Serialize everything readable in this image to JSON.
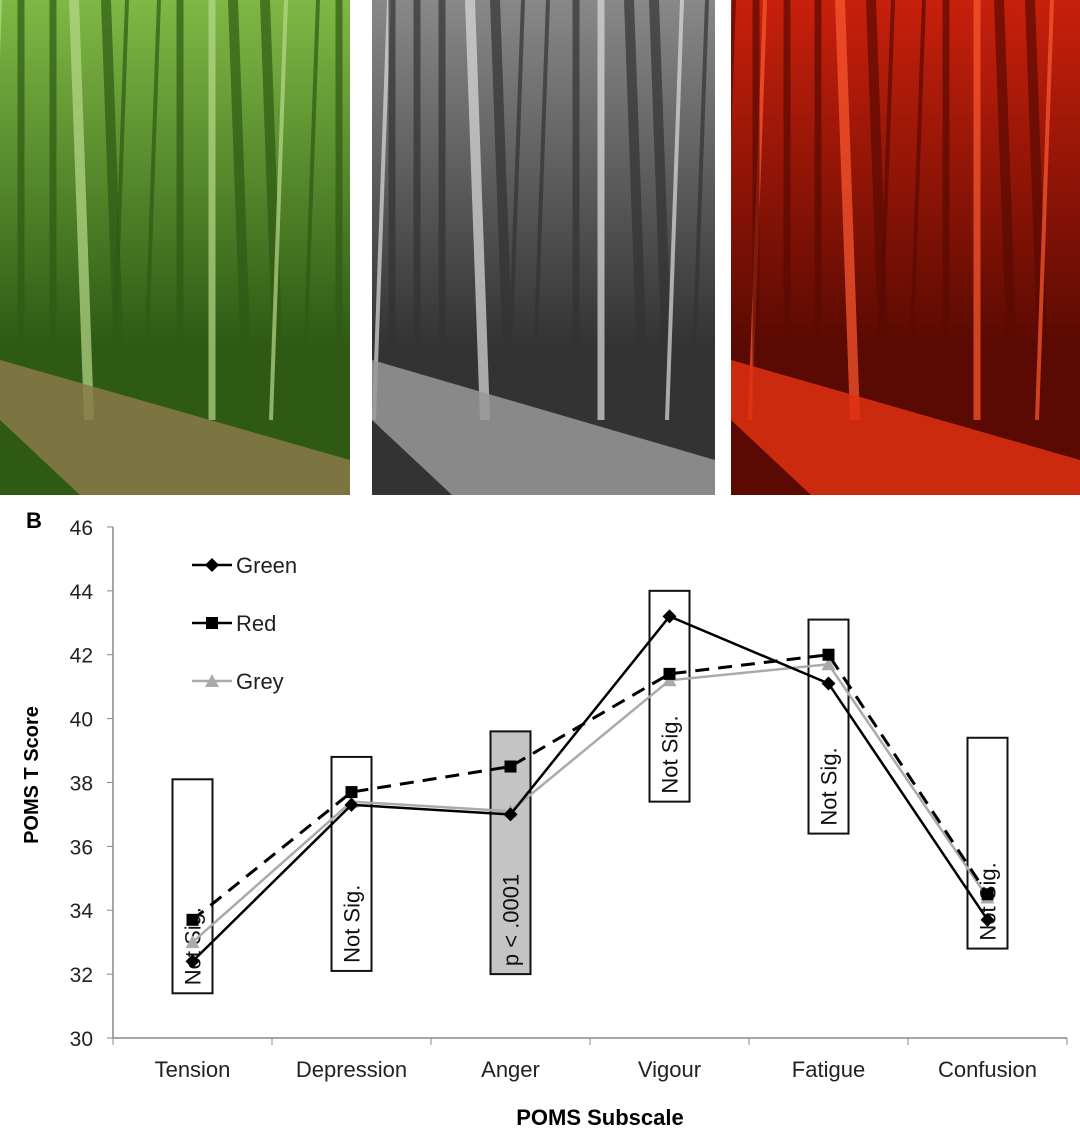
{
  "photos": [
    {
      "label": "green forest road",
      "tint": "#4f8a2a"
    },
    {
      "label": "grey forest road",
      "tint": "#8a8a8a"
    },
    {
      "label": "red forest road",
      "tint": "#c8200c"
    }
  ],
  "panel_label": "B",
  "chart_data": {
    "type": "line",
    "xlabel": "POMS Subscale",
    "ylabel": "POMS T Score",
    "categories": [
      "Tension",
      "Depression",
      "Anger",
      "Vigour",
      "Fatigue",
      "Confusion"
    ],
    "ylim": [
      30,
      46
    ],
    "yticks": [
      30,
      32,
      34,
      36,
      38,
      40,
      42,
      44,
      46
    ],
    "grid": false,
    "legend_position": "top-left",
    "series": [
      {
        "name": "Green",
        "values": [
          32.4,
          37.3,
          37.0,
          43.2,
          41.1,
          33.7
        ],
        "color": "#000000",
        "marker": "diamond",
        "dash": "solid"
      },
      {
        "name": "Red",
        "values": [
          33.7,
          37.7,
          38.5,
          41.4,
          42.0,
          34.5
        ],
        "color": "#000000",
        "marker": "square",
        "dash": "dashed"
      },
      {
        "name": "Grey",
        "values": [
          33.0,
          37.4,
          37.1,
          41.2,
          41.7,
          34.4
        ],
        "color": "#aaaaaa",
        "marker": "triangle",
        "dash": "solid"
      }
    ],
    "annotations": [
      {
        "category": "Tension",
        "text": "Not Sig.",
        "y_range": [
          31.4,
          38.1
        ],
        "shaded": false
      },
      {
        "category": "Depression",
        "text": "Not Sig.",
        "y_range": [
          32.1,
          38.8
        ],
        "shaded": false
      },
      {
        "category": "Anger",
        "text": "p < .0001",
        "y_range": [
          32.0,
          39.6
        ],
        "shaded": true
      },
      {
        "category": "Vigour",
        "text": "Not Sig.",
        "y_range": [
          37.4,
          44.0
        ],
        "shaded": false
      },
      {
        "category": "Fatigue",
        "text": "Not Sig.",
        "y_range": [
          36.4,
          43.1
        ],
        "shaded": false
      },
      {
        "category": "Confusion",
        "text": "Not Sig.",
        "y_range": [
          32.8,
          39.4
        ],
        "shaded": false
      }
    ],
    "shade_color": "#c4c4c4"
  }
}
